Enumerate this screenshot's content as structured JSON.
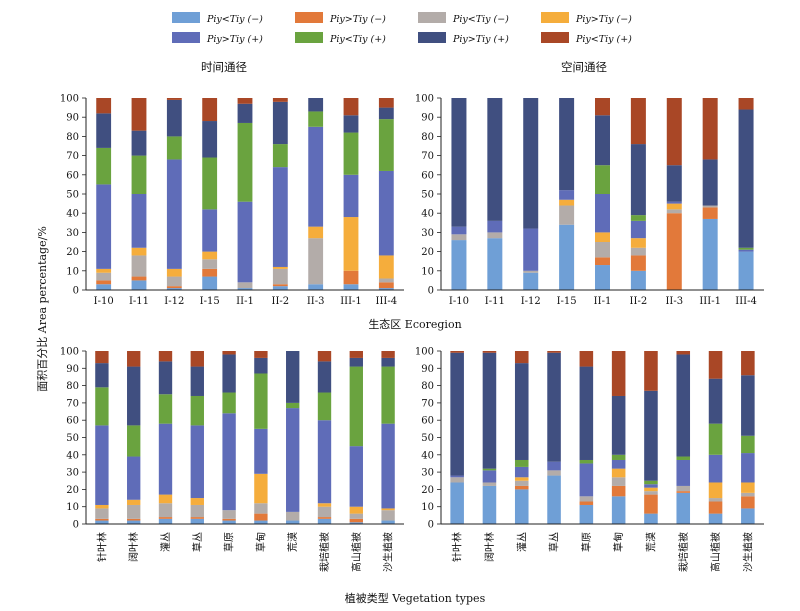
{
  "colors": {
    "c1": "#6f9fd6",
    "c2": "#e2793a",
    "c3": "#b3aca9",
    "c4": "#f5ad3c",
    "c5": "#5f6cb8",
    "c6": "#6aa33f",
    "c7": "#404f80",
    "c8": "#a94726"
  },
  "legend": [
    {
      "label": "Piy<Tiy (−)"
    },
    {
      "label": "Piy>Tiy (−)"
    },
    {
      "label": "Piy<Tiy (−)"
    },
    {
      "label": "Piy>Tiy (−)"
    },
    {
      "label": "Piy>Tiy (+)"
    },
    {
      "label": "Piy<Tiy (+)"
    },
    {
      "label": "Piy>Tiy (+)"
    },
    {
      "label": "Piy<Tiy (+)"
    }
  ],
  "labels": {
    "ylabel": "面积百分比 Area percentage/%",
    "xlabel_top": "生态区 Ecoregion",
    "xlabel_bottom": "植被类型 Vegetation types"
  },
  "chart_data": [
    {
      "type": "bar",
      "stacked": true,
      "title": "时间通径",
      "ylim": [
        0,
        100
      ],
      "yticks": [
        0,
        10,
        20,
        30,
        40,
        50,
        60,
        70,
        80,
        90,
        100
      ],
      "categories": [
        "I-10",
        "I-11",
        "I-12",
        "I-15",
        "II-1",
        "II-2",
        "II-3",
        "III-1",
        "III-4"
      ],
      "series": [
        {
          "values": [
            3,
            5,
            1,
            7,
            1,
            2,
            3,
            3,
            1
          ]
        },
        {
          "values": [
            2,
            2,
            1,
            4,
            0,
            1,
            0,
            7,
            3
          ]
        },
        {
          "values": [
            4,
            11,
            5,
            5,
            3,
            8,
            24,
            0,
            2
          ]
        },
        {
          "values": [
            2,
            4,
            4,
            4,
            0,
            1,
            6,
            28,
            12
          ]
        },
        {
          "values": [
            44,
            28,
            57,
            22,
            42,
            52,
            52,
            22,
            44
          ]
        },
        {
          "values": [
            19,
            20,
            12,
            27,
            41,
            12,
            8,
            22,
            27
          ]
        },
        {
          "values": [
            18,
            13,
            19,
            19,
            10,
            22,
            7,
            9,
            6
          ]
        },
        {
          "values": [
            8,
            17,
            1,
            12,
            3,
            2,
            0,
            9,
            5
          ]
        }
      ]
    },
    {
      "type": "bar",
      "stacked": true,
      "title": "空间通径",
      "ylim": [
        0,
        100
      ],
      "yticks": [
        0,
        10,
        20,
        30,
        40,
        50,
        60,
        70,
        80,
        90,
        100
      ],
      "categories": [
        "I-10",
        "I-11",
        "I-12",
        "I-15",
        "II-1",
        "II-2",
        "II-3",
        "III-1",
        "III-4"
      ],
      "series": [
        {
          "values": [
            26,
            27,
            9,
            34,
            13,
            10,
            0,
            37,
            20
          ]
        },
        {
          "values": [
            0,
            0,
            0,
            0,
            4,
            8,
            40,
            6,
            0
          ]
        },
        {
          "values": [
            3,
            3,
            1,
            10,
            8,
            4,
            2,
            1,
            0
          ]
        },
        {
          "values": [
            0,
            0,
            0,
            3,
            5,
            5,
            3,
            0,
            0
          ]
        },
        {
          "values": [
            4,
            6,
            22,
            5,
            20,
            9,
            1,
            0,
            1
          ]
        },
        {
          "values": [
            0,
            0,
            0,
            0,
            15,
            3,
            0,
            0,
            1
          ]
        },
        {
          "values": [
            67,
            64,
            68,
            48,
            26,
            37,
            19,
            24,
            72
          ]
        },
        {
          "values": [
            0,
            0,
            0,
            0,
            9,
            24,
            35,
            32,
            6
          ]
        }
      ]
    },
    {
      "type": "bar",
      "stacked": true,
      "ylim": [
        0,
        100
      ],
      "yticks": [
        0,
        10,
        20,
        30,
        40,
        50,
        60,
        70,
        80,
        90,
        100
      ],
      "categories": [
        "针叶林",
        "阔叶林",
        "灌丛",
        "草丛",
        "草原",
        "草甸",
        "荒漠",
        "栽培植被",
        "高山植被",
        "沙生植被"
      ],
      "series": [
        {
          "values": [
            2,
            2,
            3,
            3,
            2,
            2,
            2,
            3,
            1,
            2
          ]
        },
        {
          "values": [
            1,
            1,
            1,
            1,
            1,
            4,
            0,
            1,
            2,
            0
          ]
        },
        {
          "values": [
            6,
            8,
            8,
            7,
            5,
            6,
            5,
            6,
            3,
            6
          ]
        },
        {
          "values": [
            2,
            3,
            5,
            4,
            0,
            17,
            0,
            2,
            4,
            1
          ]
        },
        {
          "values": [
            46,
            25,
            41,
            42,
            56,
            26,
            60,
            48,
            35,
            49
          ]
        },
        {
          "values": [
            22,
            18,
            17,
            17,
            12,
            32,
            3,
            16,
            46,
            33
          ]
        },
        {
          "values": [
            14,
            34,
            19,
            17,
            22,
            9,
            30,
            18,
            5,
            5
          ]
        },
        {
          "values": [
            7,
            9,
            6,
            9,
            2,
            4,
            0,
            6,
            4,
            4
          ]
        }
      ]
    },
    {
      "type": "bar",
      "stacked": true,
      "ylim": [
        0,
        100
      ],
      "yticks": [
        0,
        10,
        20,
        30,
        40,
        50,
        60,
        70,
        80,
        90,
        100
      ],
      "categories": [
        "针叶林",
        "阔叶林",
        "灌丛",
        "草丛",
        "草原",
        "草甸",
        "荒漠",
        "栽培植被",
        "高山植被",
        "沙生植被"
      ],
      "series": [
        {
          "values": [
            24,
            22,
            20,
            28,
            11,
            16,
            6,
            18,
            6,
            9
          ]
        },
        {
          "values": [
            0,
            0,
            2,
            0,
            2,
            6,
            11,
            1,
            7,
            7
          ]
        },
        {
          "values": [
            3,
            2,
            3,
            3,
            3,
            5,
            2,
            3,
            2,
            2
          ]
        },
        {
          "values": [
            0,
            0,
            2,
            0,
            0,
            5,
            2,
            0,
            9,
            6
          ]
        },
        {
          "values": [
            1,
            7,
            6,
            5,
            19,
            5,
            2,
            15,
            16,
            17
          ]
        },
        {
          "values": [
            0,
            1,
            4,
            0,
            2,
            3,
            2,
            2,
            18,
            10
          ]
        },
        {
          "values": [
            71,
            67,
            56,
            63,
            54,
            34,
            52,
            59,
            26,
            35
          ]
        },
        {
          "values": [
            1,
            1,
            7,
            1,
            9,
            26,
            23,
            2,
            16,
            14
          ]
        }
      ]
    }
  ]
}
